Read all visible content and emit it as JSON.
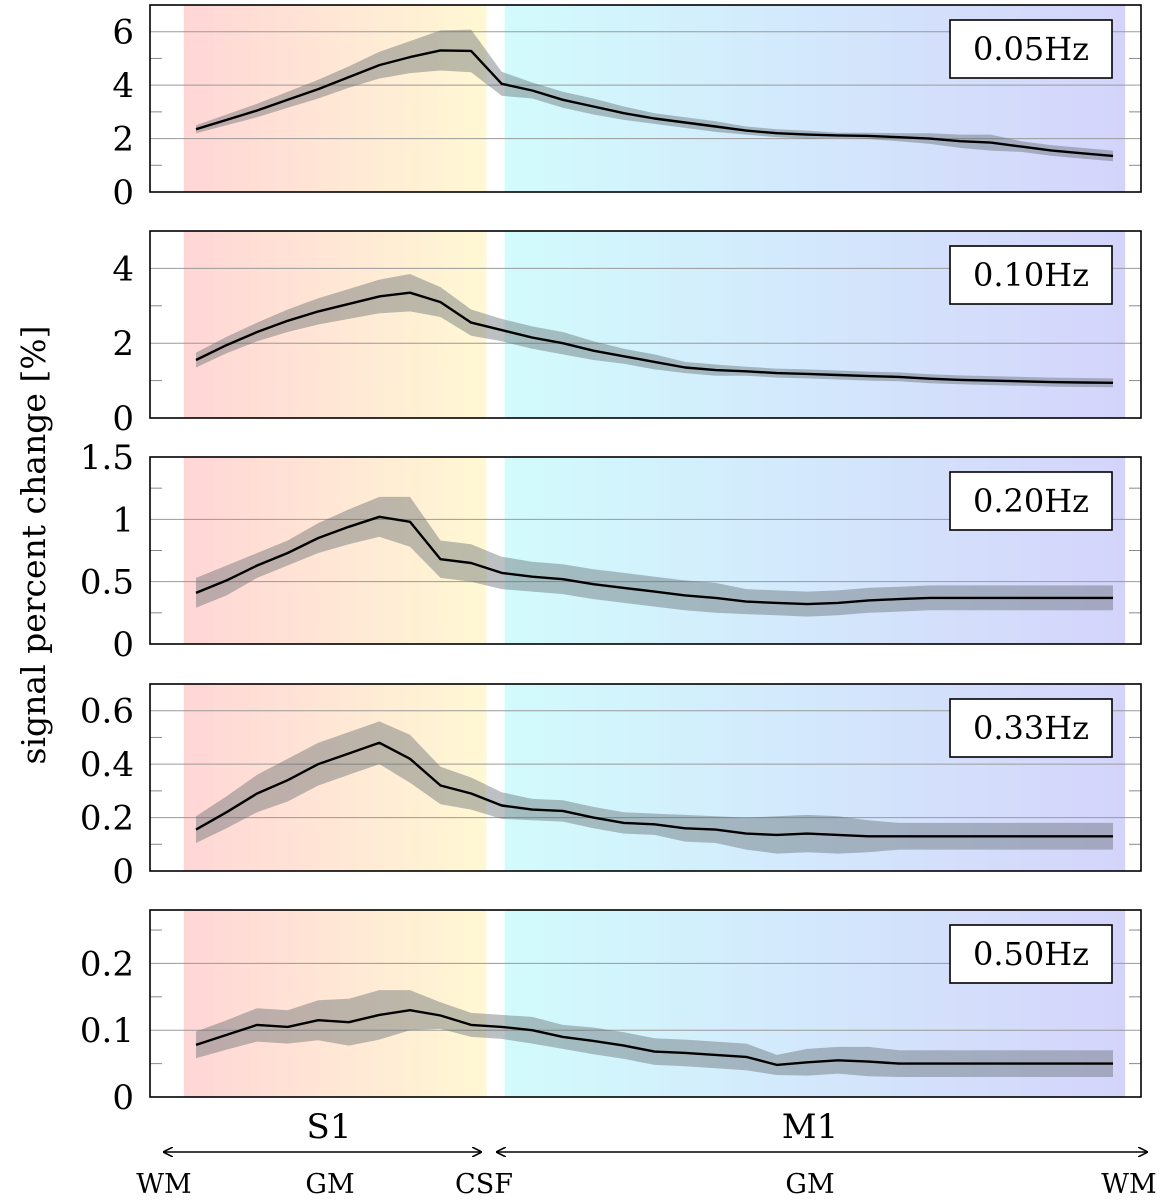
{
  "chart_data": {
    "type": "line",
    "ylabel": "signal percent change [%]",
    "x": [
      0,
      1,
      2,
      3,
      4,
      5,
      6,
      7,
      8,
      9,
      10,
      11,
      12,
      13,
      14,
      15,
      16,
      17,
      18,
      19,
      20,
      21,
      22,
      23,
      24,
      25,
      26,
      27,
      28,
      29,
      30
    ],
    "shaded_regions": [
      {
        "name": "S1",
        "x_range": [
          -0.4,
          9.5
        ],
        "colors": [
          "#ffd6d6",
          "#fff8d4"
        ]
      },
      {
        "name": "M1",
        "x_range": [
          10.1,
          30.4
        ],
        "colors": [
          "#d2fbfc",
          "#d4d4fb"
        ]
      }
    ],
    "panels": [
      {
        "label": "0.05Hz",
        "ylim": [
          0,
          7
        ],
        "yticks": [
          0,
          2,
          4,
          6
        ],
        "tick_labels": [
          "0",
          "2",
          "4",
          "6"
        ],
        "mean": [
          2.35,
          2.7,
          3.05,
          3.45,
          3.85,
          4.3,
          4.75,
          5.05,
          5.3,
          5.28,
          4.05,
          3.8,
          3.45,
          3.2,
          2.95,
          2.75,
          2.6,
          2.45,
          2.3,
          2.2,
          2.15,
          2.12,
          2.1,
          2.05,
          2.0,
          1.9,
          1.85,
          1.7,
          1.55,
          1.45,
          1.35
        ],
        "std": [
          0.15,
          0.2,
          0.25,
          0.3,
          0.35,
          0.4,
          0.5,
          0.6,
          0.75,
          0.8,
          0.45,
          0.3,
          0.3,
          0.3,
          0.25,
          0.2,
          0.2,
          0.2,
          0.15,
          0.15,
          0.15,
          0.1,
          0.12,
          0.15,
          0.2,
          0.25,
          0.3,
          0.2,
          0.2,
          0.2,
          0.2
        ]
      },
      {
        "label": "0.10Hz",
        "ylim": [
          0,
          5
        ],
        "yticks": [
          0,
          2,
          4
        ],
        "tick_labels": [
          "0",
          "2",
          "4"
        ],
        "mean": [
          1.55,
          1.95,
          2.3,
          2.6,
          2.85,
          3.05,
          3.25,
          3.35,
          3.1,
          2.55,
          2.35,
          2.15,
          2.0,
          1.8,
          1.65,
          1.5,
          1.35,
          1.28,
          1.25,
          1.2,
          1.18,
          1.15,
          1.12,
          1.1,
          1.05,
          1.02,
          1.0,
          0.98,
          0.96,
          0.95,
          0.94
        ],
        "std": [
          0.2,
          0.22,
          0.25,
          0.3,
          0.35,
          0.4,
          0.45,
          0.5,
          0.4,
          0.35,
          0.3,
          0.3,
          0.3,
          0.25,
          0.2,
          0.2,
          0.15,
          0.15,
          0.12,
          0.12,
          0.12,
          0.12,
          0.12,
          0.12,
          0.12,
          0.12,
          0.12,
          0.12,
          0.12,
          0.12,
          0.12
        ]
      },
      {
        "label": "0.20Hz",
        "ylim": [
          0,
          1.5
        ],
        "yticks": [
          0,
          0.5,
          1,
          1.5
        ],
        "tick_labels": [
          "0",
          "0.5",
          "1",
          "1.5"
        ],
        "mean": [
          0.41,
          0.51,
          0.63,
          0.73,
          0.85,
          0.94,
          1.02,
          0.98,
          0.68,
          0.65,
          0.57,
          0.54,
          0.52,
          0.48,
          0.45,
          0.42,
          0.39,
          0.37,
          0.34,
          0.33,
          0.32,
          0.33,
          0.35,
          0.36,
          0.37,
          0.37,
          0.37,
          0.37,
          0.37,
          0.37,
          0.37
        ],
        "std": [
          0.12,
          0.12,
          0.1,
          0.1,
          0.12,
          0.14,
          0.16,
          0.2,
          0.15,
          0.15,
          0.13,
          0.12,
          0.12,
          0.12,
          0.12,
          0.12,
          0.12,
          0.12,
          0.1,
          0.1,
          0.1,
          0.1,
          0.1,
          0.1,
          0.1,
          0.1,
          0.1,
          0.1,
          0.1,
          0.1,
          0.1
        ]
      },
      {
        "label": "0.33Hz",
        "ylim": [
          0,
          0.7
        ],
        "yticks": [
          0,
          0.2,
          0.4,
          0.6
        ],
        "tick_labels": [
          "0",
          "0.2",
          "0.4",
          "0.6"
        ],
        "mean": [
          0.155,
          0.22,
          0.29,
          0.34,
          0.4,
          0.44,
          0.48,
          0.42,
          0.32,
          0.29,
          0.245,
          0.23,
          0.225,
          0.2,
          0.18,
          0.175,
          0.16,
          0.155,
          0.14,
          0.135,
          0.14,
          0.135,
          0.13,
          0.13,
          0.13,
          0.13,
          0.13,
          0.13,
          0.13,
          0.13,
          0.13
        ],
        "std": [
          0.05,
          0.06,
          0.07,
          0.08,
          0.08,
          0.08,
          0.08,
          0.09,
          0.07,
          0.06,
          0.05,
          0.04,
          0.04,
          0.04,
          0.04,
          0.04,
          0.05,
          0.05,
          0.06,
          0.07,
          0.07,
          0.07,
          0.06,
          0.05,
          0.05,
          0.05,
          0.05,
          0.05,
          0.05,
          0.05,
          0.05
        ]
      },
      {
        "label": "0.50Hz",
        "ylim": [
          0,
          0.28
        ],
        "yticks": [
          0,
          0.1,
          0.2
        ],
        "tick_labels": [
          "0",
          "0.1",
          "0.2"
        ],
        "mean": [
          0.078,
          0.093,
          0.108,
          0.105,
          0.115,
          0.112,
          0.123,
          0.13,
          0.122,
          0.108,
          0.105,
          0.1,
          0.09,
          0.084,
          0.077,
          0.068,
          0.066,
          0.063,
          0.06,
          0.048,
          0.052,
          0.055,
          0.053,
          0.05,
          0.05,
          0.05,
          0.05,
          0.05,
          0.05,
          0.05,
          0.05
        ],
        "std": [
          0.02,
          0.022,
          0.025,
          0.025,
          0.03,
          0.035,
          0.037,
          0.03,
          0.02,
          0.018,
          0.018,
          0.02,
          0.018,
          0.02,
          0.02,
          0.02,
          0.02,
          0.02,
          0.02,
          0.015,
          0.02,
          0.02,
          0.022,
          0.02,
          0.02,
          0.02,
          0.02,
          0.02,
          0.02,
          0.02,
          0.02
        ]
      }
    ]
  },
  "regions": {
    "s1_label": "S1",
    "m1_label": "M1"
  },
  "tissue_labels": {
    "wm_left": "WM",
    "gm_s1": "GM",
    "csf": "CSF",
    "gm_m1": "GM",
    "wm_right": "WM"
  }
}
